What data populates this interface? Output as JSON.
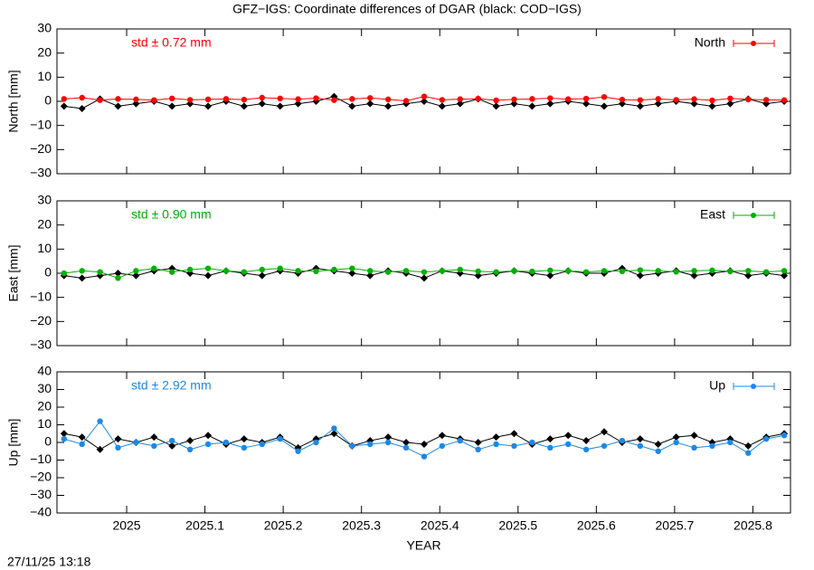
{
  "chart_data": [
    {
      "type": "line",
      "title": "GFZ−IGS: Coordinate differences of DGAR (black: COD−IGS)",
      "ylabel": "North [mm]",
      "annotation": "std ± 0.72 mm",
      "legend": "top right",
      "xlim": [
        2024.911,
        2025.848
      ],
      "xticks": [
        2025,
        2025.1,
        2025.2,
        2025.3,
        2025.4,
        2025.5,
        2025.6,
        2025.7,
        2025.8
      ],
      "ylim": [
        -30,
        30
      ],
      "yticks": [
        {
          "value": -30,
          "label": "−30"
        },
        {
          "value": -20,
          "label": "−20"
        },
        {
          "value": -10,
          "label": "−10"
        },
        0,
        10,
        20,
        30
      ],
      "x": [
        2024.92,
        2024.943,
        2024.966,
        2024.989,
        2025.012,
        2025.035,
        2025.058,
        2025.081,
        2025.104,
        2025.127,
        2025.15,
        2025.173,
        2025.196,
        2025.219,
        2025.242,
        2025.265,
        2025.288,
        2025.311,
        2025.334,
        2025.357,
        2025.38,
        2025.403,
        2025.426,
        2025.449,
        2025.472,
        2025.495,
        2025.518,
        2025.541,
        2025.564,
        2025.587,
        2025.61,
        2025.633,
        2025.656,
        2025.679,
        2025.702,
        2025.725,
        2025.748,
        2025.771,
        2025.794,
        2025.817,
        2025.84
      ],
      "series": [
        {
          "color": "#000000",
          "values": [
            -2,
            -3,
            1,
            -2,
            -1,
            0,
            -2,
            -1,
            -2,
            0,
            -2,
            -1,
            -2,
            -1,
            0,
            2,
            -2,
            -1,
            -2,
            -1,
            0,
            -2,
            -1,
            1,
            -2,
            -1,
            -2,
            -1,
            0,
            -1,
            -2,
            -1,
            -2,
            -1,
            0,
            -1,
            -2,
            -1,
            1,
            -1,
            0
          ]
        },
        {
          "name": "North",
          "color": "#ff0000",
          "values": [
            1,
            1.5,
            0.5,
            1,
            0.8,
            0.5,
            1.2,
            0.6,
            0.8,
            1,
            0.7,
            1.5,
            1.2,
            0.9,
            1.3,
            0.5,
            1,
            1.4,
            0.8,
            0.2,
            2,
            0.6,
            0.9,
            1.1,
            0.4,
            0.8,
            1,
            1.3,
            0.9,
            1.1,
            1.8,
            0.7,
            0.5,
            1,
            0.6,
            0.9,
            0.4,
            1.2,
            0.8,
            0.6,
            0.5
          ]
        }
      ]
    },
    {
      "type": "line",
      "ylabel": "East [mm]",
      "annotation": "std ± 0.90 mm",
      "legend": "top right",
      "xlim": [
        2024.911,
        2025.848
      ],
      "xticks": [
        2025,
        2025.1,
        2025.2,
        2025.3,
        2025.4,
        2025.5,
        2025.6,
        2025.7,
        2025.8
      ],
      "ylim": [
        -30,
        30
      ],
      "yticks": [
        {
          "value": -30,
          "label": "−30"
        },
        {
          "value": -20,
          "label": "−20"
        },
        {
          "value": -10,
          "label": "−10"
        },
        0,
        10,
        20,
        30
      ],
      "x": [
        2024.92,
        2024.943,
        2024.966,
        2024.989,
        2025.012,
        2025.035,
        2025.058,
        2025.081,
        2025.104,
        2025.127,
        2025.15,
        2025.173,
        2025.196,
        2025.219,
        2025.242,
        2025.265,
        2025.288,
        2025.311,
        2025.334,
        2025.357,
        2025.38,
        2025.403,
        2025.426,
        2025.449,
        2025.472,
        2025.495,
        2025.518,
        2025.541,
        2025.564,
        2025.587,
        2025.61,
        2025.633,
        2025.656,
        2025.679,
        2025.702,
        2025.725,
        2025.748,
        2025.771,
        2025.794,
        2025.817,
        2025.84
      ],
      "series": [
        {
          "color": "#000000",
          "values": [
            -1,
            -2,
            -1,
            0,
            -1,
            1,
            2,
            0,
            -1,
            1,
            0,
            -1,
            1,
            0,
            2,
            1,
            0,
            -1,
            1,
            0,
            -2,
            1,
            0,
            -1,
            0,
            1,
            0,
            -1,
            1,
            0,
            0,
            2,
            -1,
            0,
            1,
            -1,
            0,
            1,
            -1,
            0,
            -1
          ]
        },
        {
          "name": "East",
          "color": "#00b000",
          "values": [
            0,
            1,
            0.5,
            -2,
            1,
            2,
            0.5,
            1.5,
            2,
            1,
            0.5,
            1.5,
            2,
            1,
            0.8,
            1.5,
            2,
            1,
            0.5,
            1,
            0.5,
            1,
            1.5,
            0.8,
            0.5,
            1,
            0.7,
            1.2,
            1,
            0.5,
            1,
            0.8,
            1.3,
            1,
            0.6,
            1,
            1.2,
            0.8,
            1,
            0.5,
            1
          ]
        }
      ]
    },
    {
      "type": "line",
      "ylabel": "Up [mm]",
      "xlabel": "YEAR",
      "annotation": "std ± 2.92 mm",
      "legend": "top right",
      "xlim": [
        2024.911,
        2025.848
      ],
      "xticks": [
        2025,
        2025.1,
        2025.2,
        2025.3,
        2025.4,
        2025.5,
        2025.6,
        2025.7,
        2025.8
      ],
      "ylim": [
        -40,
        40
      ],
      "yticks": [
        {
          "value": -40,
          "label": "−40"
        },
        {
          "value": -30,
          "label": "−30"
        },
        {
          "value": -20,
          "label": "−20"
        },
        {
          "value": -10,
          "label": "−10"
        },
        0,
        10,
        20,
        30,
        40
      ],
      "x": [
        2024.92,
        2024.943,
        2024.966,
        2024.989,
        2025.012,
        2025.035,
        2025.058,
        2025.081,
        2025.104,
        2025.127,
        2025.15,
        2025.173,
        2025.196,
        2025.219,
        2025.242,
        2025.265,
        2025.288,
        2025.311,
        2025.334,
        2025.357,
        2025.38,
        2025.403,
        2025.426,
        2025.449,
        2025.472,
        2025.495,
        2025.518,
        2025.541,
        2025.564,
        2025.587,
        2025.61,
        2025.633,
        2025.656,
        2025.679,
        2025.702,
        2025.725,
        2025.748,
        2025.771,
        2025.794,
        2025.817,
        2025.84
      ],
      "series": [
        {
          "color": "#000000",
          "values": [
            5,
            3,
            -4,
            2,
            0,
            3,
            -2,
            1,
            4,
            -1,
            2,
            0,
            3,
            -3,
            2,
            5,
            -2,
            1,
            3,
            0,
            -1,
            4,
            2,
            0,
            3,
            5,
            -1,
            2,
            4,
            1,
            6,
            0,
            2,
            -1,
            3,
            4,
            0,
            2,
            -2,
            3,
            5
          ]
        },
        {
          "name": "Up",
          "color": "#1e88e5",
          "values": [
            2,
            -1,
            12,
            -3,
            0,
            -2,
            1,
            -4,
            -1,
            0,
            -3,
            -1,
            2,
            -5,
            0,
            8,
            -2,
            -1,
            0,
            -3,
            -8,
            -2,
            1,
            -4,
            -1,
            -2,
            0,
            -3,
            -1,
            -4,
            -2,
            1,
            -2,
            -5,
            0,
            -3,
            -2,
            0,
            -6,
            2,
            4
          ]
        }
      ]
    }
  ],
  "footer": "27/11/25 13:18"
}
